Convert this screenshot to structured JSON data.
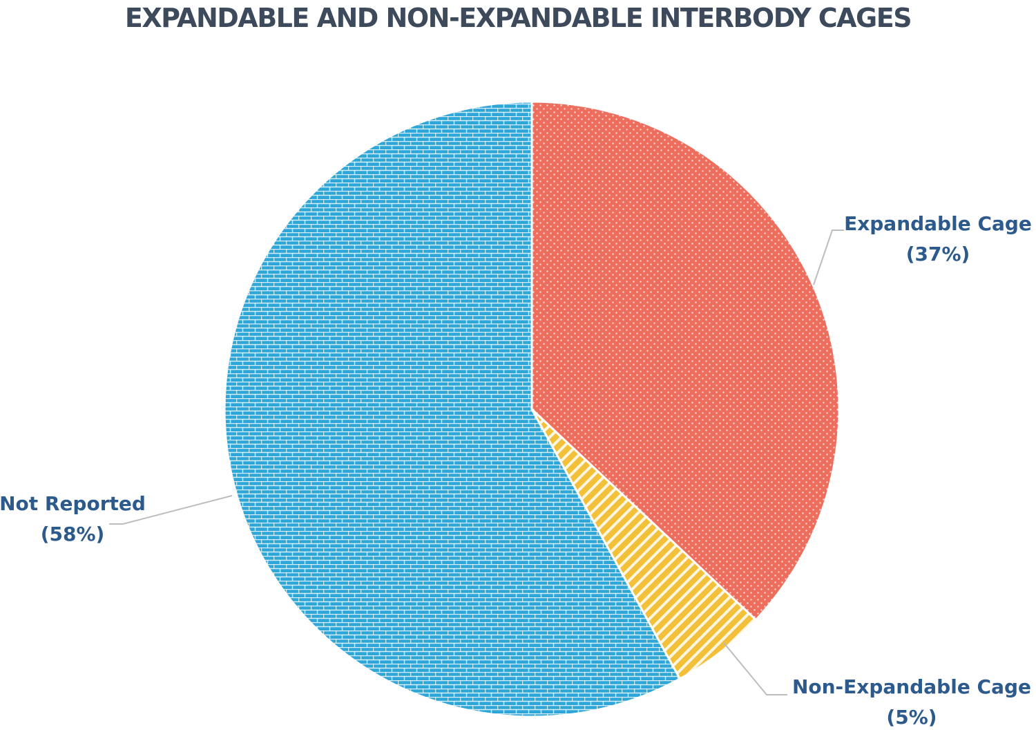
{
  "chart_data": {
    "type": "pie",
    "title": "EXPANDABLE AND NON-EXPANDABLE INTERBODY CAGES",
    "slices": [
      {
        "label": "Expandable Cage",
        "value": 37,
        "value_label": "(37%)",
        "color": "#ee6e5e",
        "pattern": "dots"
      },
      {
        "label": "Non-Expandable Cage",
        "value": 5,
        "value_label": "(5%)",
        "color": "#f3c03a",
        "pattern": "diagonal-stripes"
      },
      {
        "label": "Not Reported",
        "value": 58,
        "value_label": "(58%)",
        "color": "#2fa6d8",
        "pattern": "bricks"
      }
    ],
    "legend": "none",
    "start": "12 o'clock, clockwise"
  }
}
